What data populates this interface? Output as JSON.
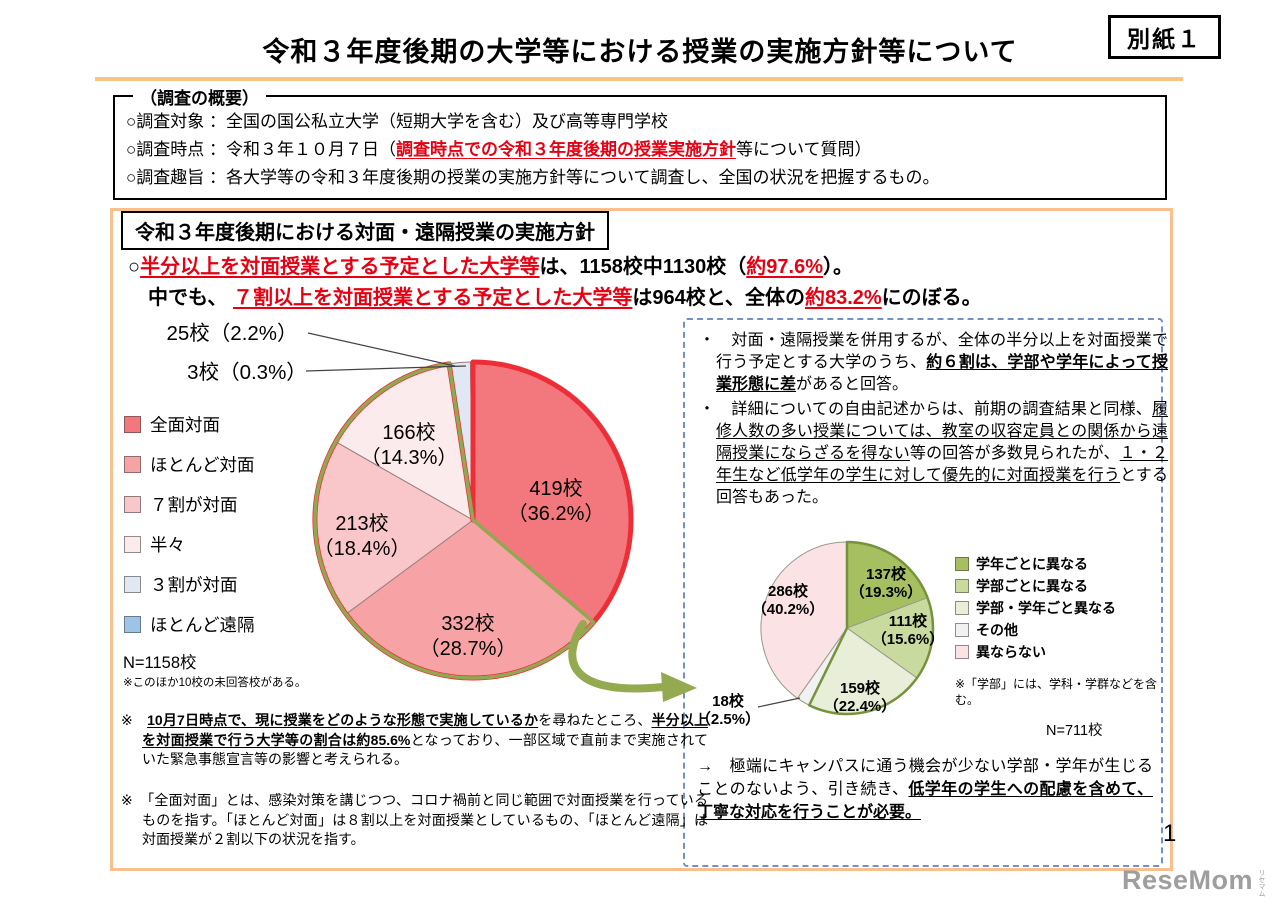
{
  "page": {
    "badge": "別紙１",
    "title": "令和３年度後期の大学等における授業の実施方針等について",
    "page_number": "1",
    "logo": "ReseMom",
    "logo_sub": "リセマム"
  },
  "survey_box": {
    "label": "（調査の概要）",
    "lines": [
      [
        {
          "t": "○調査対象 ：全国の国公私立大学（短期大学を含む）及び高等専門学校",
          "s": ""
        }
      ],
      [
        {
          "t": "○調査時点 ：令和３年１０月７日（",
          "s": ""
        },
        {
          "t": "調査時点での令和３年度後期の授業実施方針",
          "s": "ru"
        },
        {
          "t": "等について質問）",
          "s": ""
        }
      ],
      [
        {
          "t": "○調査趣旨 ：各大学等の令和３年度後期の授業の実施方針等について調査し、全国の状況を把握するもの。",
          "s": ""
        }
      ]
    ]
  },
  "main": {
    "section_title": "令和３年度後期における対面・遠隔授業の実施方針",
    "lead_lines": [
      [
        {
          "t": "○",
          "s": ""
        },
        {
          "t": "半分以上を対面授業とする予定とした大学等",
          "s": "ru"
        },
        {
          "t": "は、1158校中1130校（",
          "s": ""
        },
        {
          "t": "約97.6%",
          "s": "ru"
        },
        {
          "t": "）。",
          "s": ""
        }
      ],
      [
        {
          "t": "　中でも、 ",
          "s": ""
        },
        {
          "t": "７割以上を対面授業とする予定とした大学等",
          "s": "ru"
        },
        {
          "t": "は964校と、全体の",
          "s": ""
        },
        {
          "t": "約83.2%",
          "s": "ru"
        },
        {
          "t": "にのぼる。",
          "s": ""
        }
      ]
    ],
    "legend1_note": "※このほか10校の未回答校がある。",
    "info_paragraphs": [
      [
        {
          "t": "・　対面・遠隔授業を併用するが、全体の半分以上を対面授業で行う予定とする大学のうち、",
          "s": ""
        },
        {
          "t": "約６割は、学部や学年によって授業形態に差",
          "s": "bu"
        },
        {
          "t": "があると回答。",
          "s": ""
        }
      ],
      [
        {
          "t": "・　詳細についての自由記述からは、前期の調査結果と同様、",
          "s": ""
        },
        {
          "t": "履修人数の多い授業については、教室の収容定員との関係から遠隔授業にならざるを得ない",
          "s": "u"
        },
        {
          "t": "等の回答が多数見られたが、",
          "s": ""
        },
        {
          "t": "１・２年生など低学年の学生に対して優先的に対面授業を行う",
          "s": "u"
        },
        {
          "t": "とする回答もあった。",
          "s": ""
        }
      ]
    ],
    "legend2_note": "※「学部」には、学科・学群などを含む。",
    "conclusion": [
      {
        "t": "→　極端にキャンパスに通う機会が少ない学部・学年が生じることのないよう、引き続き、",
        "s": ""
      },
      {
        "t": "低学年の学生への配慮を含めて、丁寧な対応を行うことが必要。",
        "s": "bu"
      }
    ],
    "notes": [
      [
        {
          "t": "※　",
          "s": ""
        },
        {
          "t": "10月7日時点で、現に授業をどのような形態で実施しているか",
          "s": "bu"
        },
        {
          "t": "を尋ねたところ、",
          "s": ""
        },
        {
          "t": "半分以上を対面授業で行う大学等の割合は約85.6%",
          "s": "bu"
        },
        {
          "t": "となっており、一部区域で直前まで実施されていた緊急事態宣言等の影響と考えられる。",
          "s": ""
        }
      ],
      [
        {
          "t": "※　「全面対面」とは、感染対策を講じつつ、コロナ禍前と同じ範囲で対面授業を行っているものを指す。「ほとんど対面」は８割以上を対面授業としているもの、「ほとんど遠隔」は対面授業が２割以下の状況を指す。",
          "s": ""
        }
      ]
    ]
  },
  "colors": {
    "accent_red": "#e60012",
    "outline_red": "#ee2e36",
    "olive_green": "#91a851",
    "box_orange": "#f9c08e",
    "dashed_blue": "#7291cc"
  },
  "chart_data": [
    {
      "type": "pie",
      "name": "face-to-face-policy-pie",
      "n_label": "N=1158校",
      "labels": [
        "全面対面",
        "ほとんど対面",
        "７割が対面",
        "半々",
        "３割が対面",
        "ほとんど遠隔"
      ],
      "values": [
        419,
        332,
        213,
        166,
        25,
        3
      ],
      "percents": [
        "36.2%",
        "28.7%",
        "18.4%",
        "14.3%",
        "2.2%",
        "0.3%"
      ],
      "slice_labels": [
        [
          "419校",
          "（36.2%）"
        ],
        [
          "332校",
          "（28.7%）"
        ],
        [
          "213校",
          "（18.4%）"
        ],
        [
          "166校",
          "（14.3%）"
        ],
        [
          "25校（2.2%）"
        ],
        [
          "3校（0.3%）"
        ]
      ],
      "colors": [
        "#f2787d",
        "#f7a3a6",
        "#f9c6c9",
        "#fcebec",
        "#dfe8f3",
        "#9dc3e6"
      ],
      "outlines": [
        {
          "start": 0,
          "end": 3,
          "color": "#ee2e36",
          "width": 5,
          "meaning": "半分以上を対面授業とする予定：1130校（約97.6%）"
        },
        {
          "start": 1,
          "end": 3,
          "color": "#91a851",
          "width": 3.5,
          "meaning": "対面・遠隔を併用し半分以上対面：711校"
        }
      ]
    },
    {
      "type": "pie",
      "name": "difference-breakdown-pie",
      "n_label": "N=711校",
      "labels": [
        "学年ごとに異なる",
        "学部ごとに異なる",
        "学部・学年ごと異なる",
        "その他",
        "異ならない"
      ],
      "values": [
        137,
        111,
        159,
        18,
        286
      ],
      "percents": [
        "19.3%",
        "15.6%",
        "22.4%",
        "2.5%",
        "40.2%"
      ],
      "slice_labels": [
        [
          "137校",
          "（19.3%）"
        ],
        [
          "111校",
          "（15.6%）"
        ],
        [
          "159校",
          "（22.4%）"
        ],
        [
          "18校",
          "（2.5%）"
        ],
        [
          "286校",
          "（40.2%）"
        ]
      ],
      "colors": [
        "#a6c061",
        "#c9da9f",
        "#e8eed8",
        "#f1f1f1",
        "#fbe3e5"
      ],
      "outlines": [
        {
          "start": 0,
          "end": 2,
          "color": "#76923c",
          "width": 2.5,
          "meaning": "学部・学年等により授業形態が異なる"
        }
      ]
    }
  ]
}
